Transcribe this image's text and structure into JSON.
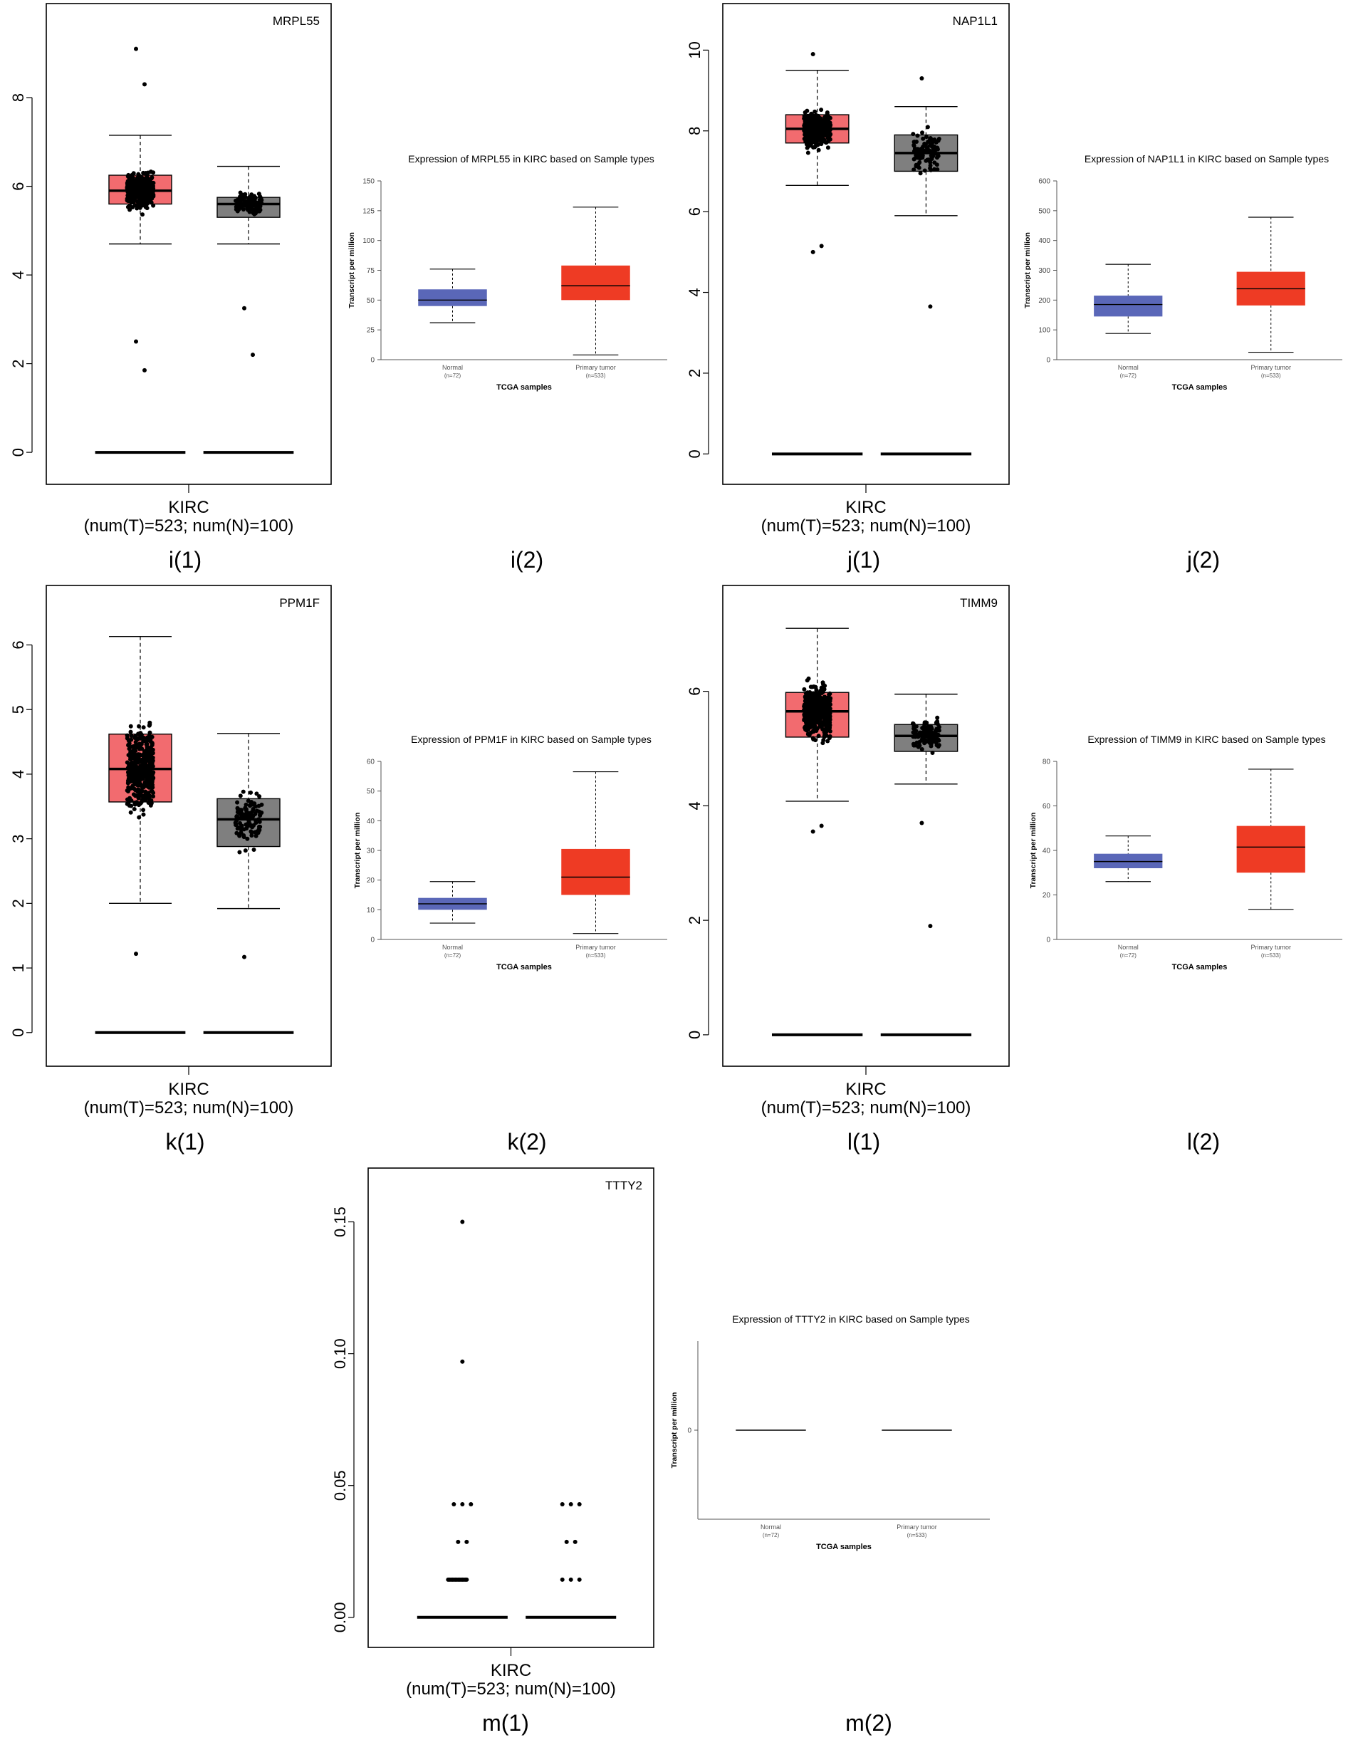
{
  "figure": {
    "panels": [
      {
        "id": "i",
        "gepia_label": "i(1)",
        "ualcan_label": "i(2)"
      },
      {
        "id": "j",
        "gepia_label": "j(1)",
        "ualcan_label": "j(2)"
      },
      {
        "id": "k",
        "gepia_label": "k(1)",
        "ualcan_label": "k(2)"
      },
      {
        "id": "l",
        "gepia_label": "l(1)",
        "ualcan_label": "l(2)"
      },
      {
        "id": "m",
        "gepia_label": "m(1)",
        "ualcan_label": "m(2)"
      }
    ]
  },
  "colors": {
    "tumor_box": "#f26b6f",
    "normal_box_gray": "#7f7f7f",
    "ualcan_normal": "#5a67b8",
    "ualcan_tumor": "#ee3b24",
    "points": "#000000",
    "axis": "#000000"
  },
  "chart_data": [
    {
      "type": "box",
      "panel": "i(1)",
      "title": "MRPL55",
      "xlabel": "KIRC",
      "xsublabel": "(num(T)=523; num(N)=100)",
      "ylim": [
        -0.4,
        9.8
      ],
      "yticks": [
        "0",
        "2",
        "4",
        "6",
        "8"
      ],
      "series": [
        {
          "name": "Tumor",
          "color": "#f26b6f",
          "q1": 5.6,
          "median": 5.9,
          "q3": 6.25,
          "whisker_low": 4.7,
          "whisker_high": 7.15,
          "point_min": 1.85,
          "point_max": 9.1,
          "outliers": [
            9.1,
            8.3,
            2.5,
            1.85
          ],
          "zero_line": true
        },
        {
          "name": "Normal",
          "color": "#7f7f7f",
          "q1": 5.3,
          "median": 5.6,
          "q3": 5.75,
          "whisker_low": 4.7,
          "whisker_high": 6.45,
          "point_min": 2.2,
          "point_max": 6.45,
          "outliers": [
            3.25,
            2.2
          ],
          "zero_line": true
        }
      ]
    },
    {
      "type": "box",
      "panel": "i(2)",
      "title": "Expression of MRPL55 in KIRC based on Sample types",
      "xlabel": "TCGA samples",
      "ylabel": "Transcript per million",
      "ylim": [
        0,
        150
      ],
      "yticks": [
        "0",
        "25",
        "50",
        "75",
        "100",
        "125",
        "150"
      ],
      "categories": [
        "Normal",
        "Primary tumor"
      ],
      "category_n": [
        "(n=72)",
        "(n=533)"
      ],
      "series": [
        {
          "name": "Normal",
          "color": "#5a67b8",
          "q1": 45,
          "median": 50,
          "q3": 59,
          "whisker_low": 31,
          "whisker_high": 76
        },
        {
          "name": "Primary tumor",
          "color": "#ee3b24",
          "q1": 50,
          "median": 62,
          "q3": 79,
          "whisker_low": 4,
          "whisker_high": 128
        }
      ]
    },
    {
      "type": "box",
      "panel": "j(1)",
      "title": "NAP1L1",
      "xlabel": "KIRC",
      "xsublabel": "(num(T)=523; num(N)=100)",
      "ylim": [
        -0.4,
        10.8
      ],
      "yticks": [
        "0",
        "2",
        "4",
        "6",
        "8",
        "10"
      ],
      "series": [
        {
          "name": "Tumor",
          "color": "#f26b6f",
          "q1": 7.7,
          "median": 8.05,
          "q3": 8.4,
          "whisker_low": 6.65,
          "whisker_high": 9.5,
          "point_min": 5.0,
          "point_max": 9.9,
          "outliers": [
            9.9,
            5.15,
            5.0
          ],
          "zero_line": true
        },
        {
          "name": "Normal",
          "color": "#7f7f7f",
          "q1": 7.0,
          "median": 7.45,
          "q3": 7.9,
          "whisker_low": 5.9,
          "whisker_high": 8.6,
          "point_min": 3.65,
          "point_max": 9.3,
          "outliers": [
            9.3,
            3.65
          ],
          "zero_line": true
        }
      ]
    },
    {
      "type": "box",
      "panel": "j(2)",
      "title": "Expression of NAP1L1 in KIRC based on Sample types",
      "xlabel": "TCGA samples",
      "ylabel": "Transcript per million",
      "ylim": [
        0,
        600
      ],
      "yticks": [
        "0",
        "100",
        "200",
        "300",
        "400",
        "500",
        "600"
      ],
      "categories": [
        "Normal",
        "Primary tumor"
      ],
      "category_n": [
        "(n=72)",
        "(n=533)"
      ],
      "series": [
        {
          "name": "Normal",
          "color": "#5a67b8",
          "q1": 145,
          "median": 185,
          "q3": 215,
          "whisker_low": 88,
          "whisker_high": 320
        },
        {
          "name": "Primary tumor",
          "color": "#ee3b24",
          "q1": 182,
          "median": 238,
          "q3": 295,
          "whisker_low": 25,
          "whisker_high": 478
        }
      ]
    },
    {
      "type": "box",
      "panel": "k(1)",
      "title": "PPM1F",
      "xlabel": "KIRC",
      "xsublabel": "(num(T)=523; num(N)=100)",
      "ylim": [
        -0.3,
        6.7
      ],
      "yticks": [
        "0",
        "1",
        "2",
        "3",
        "4",
        "5",
        "6"
      ],
      "series": [
        {
          "name": "Tumor",
          "color": "#f26b6f",
          "q1": 3.57,
          "median": 4.08,
          "q3": 4.62,
          "whisker_low": 2.0,
          "whisker_high": 6.13,
          "point_min": 1.22,
          "point_max": 6.13,
          "outliers": [
            1.22
          ],
          "zero_line": true
        },
        {
          "name": "Normal",
          "color": "#7f7f7f",
          "q1": 2.88,
          "median": 3.3,
          "q3": 3.62,
          "whisker_low": 1.92,
          "whisker_high": 4.63,
          "point_min": 1.17,
          "point_max": 4.63,
          "outliers": [
            1.17
          ],
          "zero_line": true
        }
      ]
    },
    {
      "type": "box",
      "panel": "k(2)",
      "title": "Expression of PPM1F in KIRC based on Sample types",
      "xlabel": "TCGA samples",
      "ylabel": "Transcript per million",
      "ylim": [
        0,
        60
      ],
      "yticks": [
        "0",
        "10",
        "20",
        "30",
        "40",
        "50",
        "60"
      ],
      "categories": [
        "Normal",
        "Primary tumor"
      ],
      "category_n": [
        "(n=72)",
        "(n=533)"
      ],
      "series": [
        {
          "name": "Normal",
          "color": "#5a67b8",
          "q1": 10,
          "median": 12,
          "q3": 14,
          "whisker_low": 5.5,
          "whisker_high": 19.5
        },
        {
          "name": "Primary tumor",
          "color": "#ee3b24",
          "q1": 15,
          "median": 21,
          "q3": 30.5,
          "whisker_low": 2,
          "whisker_high": 56.5
        }
      ]
    },
    {
      "type": "box",
      "panel": "l(1)",
      "title": "TIMM9",
      "xlabel": "KIRC",
      "xsublabel": "(num(T)=523; num(N)=100)",
      "ylim": [
        -0.3,
        7.6
      ],
      "yticks": [
        "0",
        "2",
        "4",
        "6"
      ],
      "series": [
        {
          "name": "Tumor",
          "color": "#f26b6f",
          "q1": 5.2,
          "median": 5.65,
          "q3": 5.98,
          "whisker_low": 4.08,
          "whisker_high": 7.1,
          "point_min": 3.55,
          "point_max": 7.1,
          "outliers": [
            3.55,
            3.65
          ],
          "zero_line": true
        },
        {
          "name": "Normal",
          "color": "#7f7f7f",
          "q1": 4.95,
          "median": 5.22,
          "q3": 5.42,
          "whisker_low": 4.38,
          "whisker_high": 5.95,
          "point_min": 1.9,
          "point_max": 5.95,
          "outliers": [
            3.7,
            1.9
          ],
          "zero_line": true
        }
      ]
    },
    {
      "type": "box",
      "panel": "l(2)",
      "title": "Expression of TIMM9 in KIRC based on Sample types",
      "xlabel": "TCGA samples",
      "ylabel": "Transcript per million",
      "ylim": [
        0,
        80
      ],
      "yticks": [
        "0",
        "20",
        "40",
        "60",
        "80"
      ],
      "categories": [
        "Normal",
        "Primary tumor"
      ],
      "category_n": [
        "(n=72)",
        "(n=533)"
      ],
      "series": [
        {
          "name": "Normal",
          "color": "#5a67b8",
          "q1": 32,
          "median": 35,
          "q3": 38.5,
          "whisker_low": 26,
          "whisker_high": 46.5
        },
        {
          "name": "Primary tumor",
          "color": "#ee3b24",
          "q1": 30,
          "median": 41.5,
          "q3": 51,
          "whisker_low": 13.5,
          "whisker_high": 76.5
        }
      ]
    },
    {
      "type": "scatter",
      "panel": "m(1)",
      "title": "TTTY2",
      "xlabel": "KIRC",
      "xsublabel": "(num(T)=523; num(N)=100)",
      "ylim": [
        -0.006,
        0.165
      ],
      "yticks": [
        "0.00",
        "0.05",
        "0.10",
        "0.15"
      ],
      "series": [
        {
          "name": "Tumor",
          "levels": [
            0.0,
            0.0143,
            0.0286,
            0.0429,
            0.097,
            0.15
          ],
          "dense_levels": [
            0.0,
            0.0143
          ]
        },
        {
          "name": "Normal",
          "levels": [
            0.0,
            0.0143,
            0.0286,
            0.0429
          ],
          "dense_levels": [
            0.0
          ]
        }
      ]
    },
    {
      "type": "box",
      "panel": "m(2)",
      "title": "Expression of TTTY2 in KIRC based on Sample types",
      "xlabel": "TCGA samples",
      "ylabel": "Transcript per million",
      "ylim": [
        -1,
        1
      ],
      "yticks": [
        "0"
      ],
      "categories": [
        "Normal",
        "Primary tumor"
      ],
      "category_n": [
        "(n=72)",
        "(n=533)"
      ],
      "series": [
        {
          "name": "Normal",
          "color": "#5a67b8",
          "q1": 0,
          "median": 0,
          "q3": 0,
          "whisker_low": 0,
          "whisker_high": 0
        },
        {
          "name": "Primary tumor",
          "color": "#ee3b24",
          "q1": 0,
          "median": 0,
          "q3": 0,
          "whisker_low": 0,
          "whisker_high": 0
        }
      ]
    }
  ]
}
